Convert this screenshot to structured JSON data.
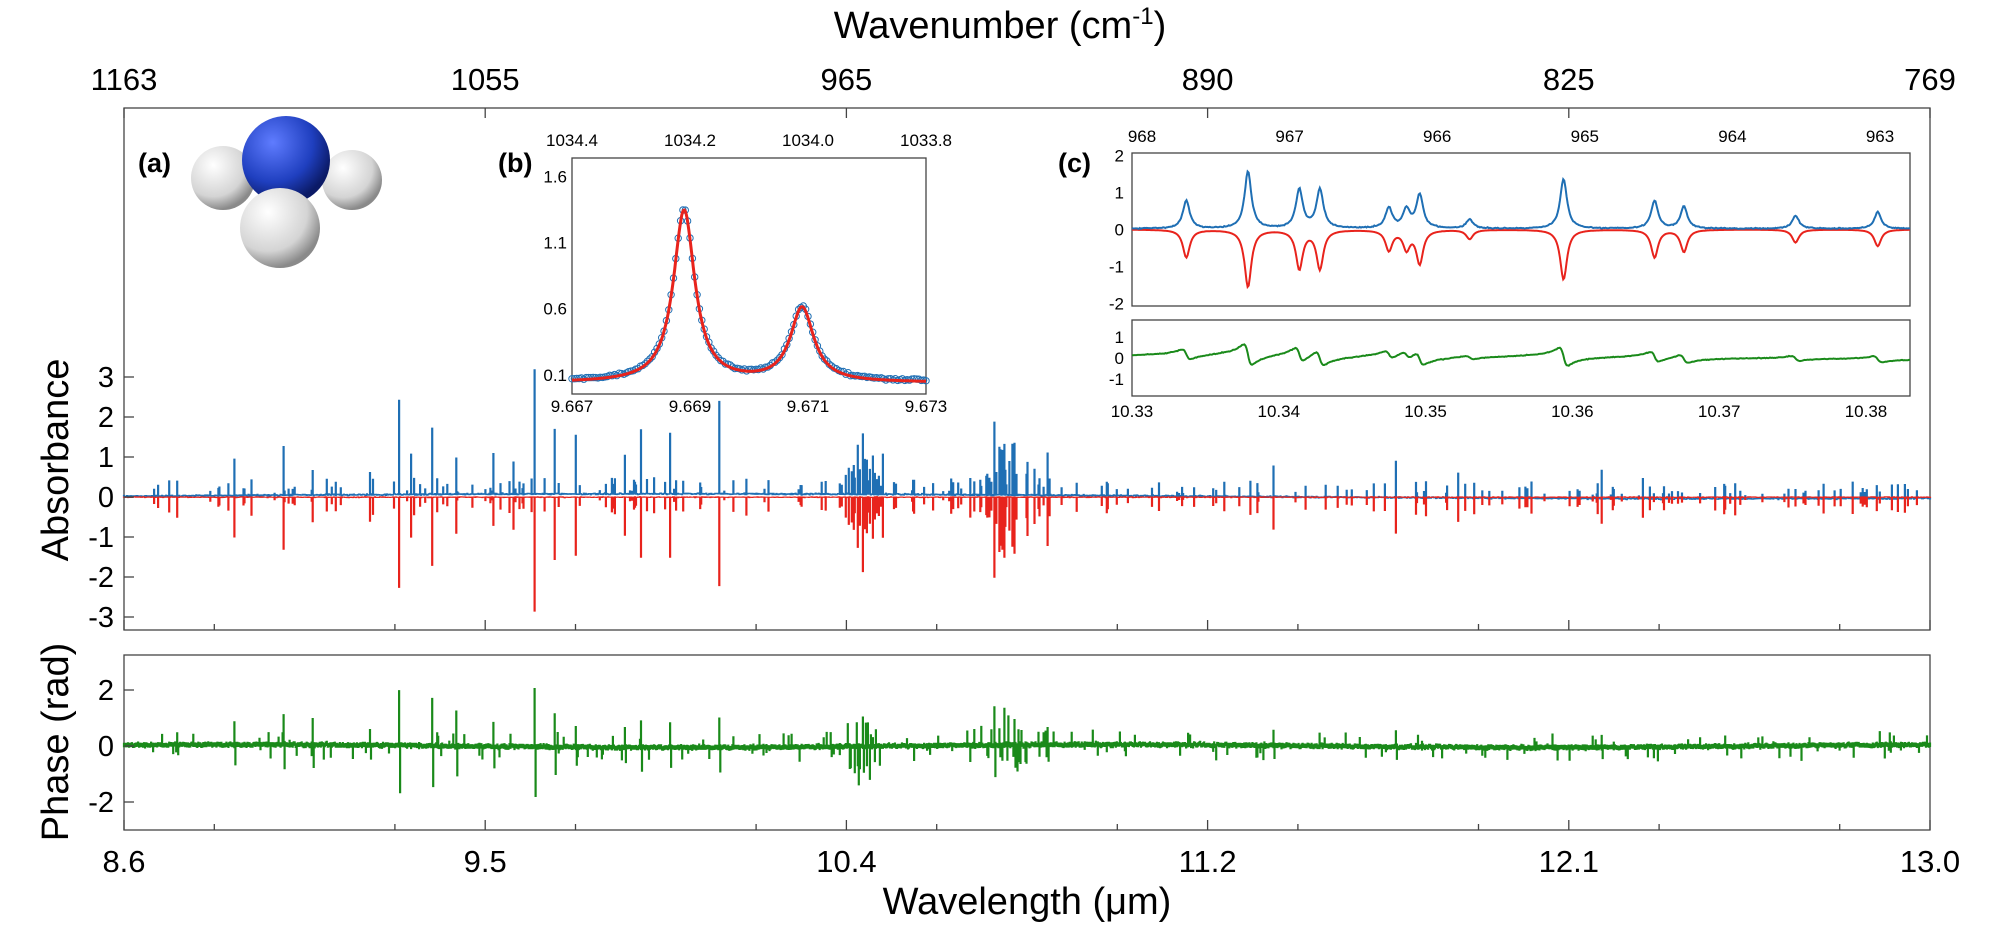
{
  "colors": {
    "absorbance": "#1f6fb4",
    "fit": "#e8231c",
    "phase": "#1a8a1a",
    "molecule_n": "#1f3fbf",
    "molecule_h": "#d9d9d9"
  },
  "labels": {
    "top_axis_title": "Wavenumber (cm",
    "top_axis_title_sup": "-1",
    "top_axis_title_end": ")",
    "x_axis_title_pre": "Wavelength (",
    "x_axis_title_mu": "μ",
    "x_axis_title_post": "m)",
    "y_main_title": "Absorbance",
    "y_phase_title": "Phase (rad)",
    "panel_a": "(a)",
    "panel_b": "(b)",
    "panel_c": "(c)"
  },
  "chart_data": [
    {
      "id": "main",
      "type": "line",
      "xlabel": "Wavelength (μm)",
      "ylabel": "Absorbance",
      "xlim": [
        8.6,
        13.0
      ],
      "ylim": [
        -3,
        3.5
      ],
      "x_ticks": [
        "8.6",
        "9.5",
        "10.4",
        "11.2",
        "12.1",
        "13.0"
      ],
      "y_ticks": [
        "3",
        "2",
        "1",
        "0",
        "-1",
        "-2",
        "-3"
      ],
      "top_axis": {
        "label": "Wavenumber (cm-1)",
        "ticks": [
          "1163",
          "1055",
          "965",
          "890",
          "825",
          "769"
        ]
      },
      "series": [
        {
          "role": "measured absorbance",
          "color": "#1f6fb4",
          "x": [
            8.73,
            8.87,
            8.99,
            9.06,
            9.2,
            9.27,
            9.3,
            9.35,
            9.41,
            9.5,
            9.55,
            9.6,
            9.65,
            9.7,
            9.82,
            9.86,
            9.93,
            10.05,
            10.4,
            10.45,
            10.72,
            10.77,
            10.85,
            11.4,
            11.7,
            11.85,
            12.2,
            12.3
          ],
          "y": [
            0.35,
            0.9,
            1.2,
            0.6,
            0.55,
            2.35,
            1.0,
            1.65,
            0.9,
            1.0,
            0.8,
            3.1,
            1.6,
            1.45,
            0.95,
            1.6,
            1.5,
            2.3,
            1.5,
            1.0,
            1.8,
            1.3,
            1.05,
            0.75,
            0.9,
            0.6,
            0.7,
            0.5
          ]
        },
        {
          "role": "fit (inverted)",
          "color": "#e8231c",
          "x": [
            8.73,
            8.87,
            8.99,
            9.06,
            9.2,
            9.27,
            9.3,
            9.35,
            9.41,
            9.5,
            9.55,
            9.6,
            9.65,
            9.7,
            9.82,
            9.86,
            9.93,
            10.05,
            10.4,
            10.45,
            10.72,
            10.77,
            10.85,
            11.4,
            11.7,
            11.85,
            12.2,
            12.3
          ],
          "y": [
            -0.5,
            -1.0,
            -1.3,
            -0.6,
            -0.6,
            -2.25,
            -1.0,
            -1.7,
            -0.9,
            -0.7,
            -0.8,
            -2.85,
            -1.55,
            -1.45,
            -0.95,
            -1.5,
            -1.5,
            -2.2,
            -1.85,
            -1.0,
            -2.0,
            -1.4,
            -1.2,
            -0.8,
            -0.9,
            -0.6,
            -0.65,
            -0.5
          ]
        }
      ]
    },
    {
      "id": "phase",
      "type": "line",
      "ylabel": "Phase (rad)",
      "xlim": [
        8.6,
        13.0
      ],
      "ylim": [
        -2.5,
        2.5
      ],
      "y_ticks": [
        "2",
        "0",
        "-2"
      ],
      "series": [
        {
          "role": "phase",
          "color": "#1a8a1a",
          "x": [
            8.73,
            8.87,
            8.99,
            9.06,
            9.2,
            9.27,
            9.35,
            9.41,
            9.5,
            9.6,
            9.65,
            9.7,
            9.82,
            9.86,
            9.93,
            10.05,
            10.4,
            10.72,
            10.77,
            10.85,
            11.4,
            11.7,
            12.2
          ],
          "y": [
            0.35,
            0.8,
            1.0,
            0.9,
            0.5,
            1.9,
            1.6,
            1.2,
            0.8,
            2.0,
            1.1,
            0.7,
            0.6,
            0.9,
            0.8,
            1.0,
            1.0,
            1.3,
            0.9,
            0.6,
            0.5,
            0.5,
            0.4
          ]
        }
      ]
    },
    {
      "id": "inset_b",
      "type": "line",
      "xlim": [
        9.667,
        9.673
      ],
      "ylim": [
        0.0,
        1.65
      ],
      "x_ticks": [
        "9.667",
        "9.669",
        "9.671",
        "9.673"
      ],
      "y_ticks": [
        "1.6",
        "1.1",
        "0.6",
        "0.1"
      ],
      "top_ticks": [
        "1034.4",
        "1034.2",
        "1034.0",
        "1033.8"
      ],
      "peaks": [
        {
          "x": 9.6689,
          "height": 1.3,
          "width": 0.00022
        },
        {
          "x": 9.6709,
          "height": 0.56,
          "width": 0.00024
        }
      ],
      "baseline": 0.05,
      "series": [
        {
          "role": "measured (circles)",
          "color": "#1f6fb4"
        },
        {
          "role": "fit",
          "color": "#e8231c"
        }
      ]
    },
    {
      "id": "inset_c_absorbance",
      "type": "line",
      "xlim": [
        10.33,
        10.383
      ],
      "ylim": [
        -2,
        2
      ],
      "y_ticks": [
        "2",
        "1",
        "0",
        "-1",
        "-2"
      ],
      "top_ticks": [
        "968",
        "967",
        "966",
        "965",
        "964",
        "963"
      ],
      "peaks_x": [
        10.3337,
        10.3379,
        10.3414,
        10.3428,
        10.3475,
        10.3487,
        10.3496,
        10.353,
        10.3594,
        10.3656,
        10.3676,
        10.3752,
        10.3808
      ],
      "peaks_y": [
        0.75,
        1.55,
        1.05,
        1.05,
        0.55,
        0.5,
        0.9,
        0.25,
        1.35,
        0.75,
        0.6,
        0.35,
        0.45
      ]
    },
    {
      "id": "inset_c_phase",
      "type": "line",
      "xlim": [
        10.33,
        10.383
      ],
      "ylim": [
        -1.2,
        1.2
      ],
      "x_ticks": [
        "10.33",
        "10.34",
        "10.35",
        "10.36",
        "10.37",
        "10.38"
      ],
      "y_ticks": [
        "1",
        "0",
        "-1"
      ]
    }
  ]
}
